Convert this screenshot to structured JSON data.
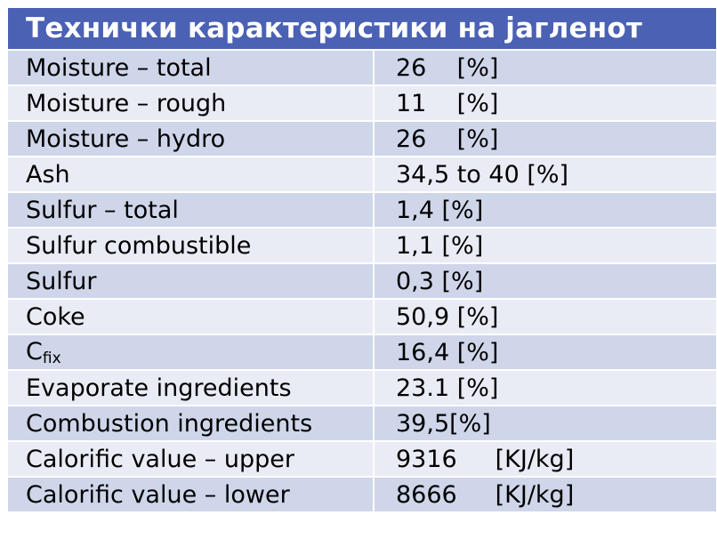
{
  "title": "Технички карактеристики на јагленот",
  "rows": [
    {
      "label": "Moisture – total",
      "value": "26    [%]"
    },
    {
      "label": "Moisture – rough",
      "value": "11    [%]"
    },
    {
      "label": "Moisture – hydro",
      "value": "26    [%]"
    },
    {
      "label": "Ash",
      "value": "34,5 to 40 [%]"
    },
    {
      "label": "Sulfur – total",
      "value": "1,4 [%]"
    },
    {
      "label": "Sulfur combustible",
      "value": "1,1 [%]"
    },
    {
      "label": "Sulfur",
      "value": "0,3 [%]"
    },
    {
      "label": "Coke",
      "value": "50,9 [%]"
    },
    {
      "label": "C",
      "label_sub": "fix",
      "value": "16,4 [%]"
    },
    {
      "label": "Evaporate ingredients",
      "value": "23.1 [%]"
    },
    {
      "label": "Combustion ingredients",
      "value": "39,5[%]"
    },
    {
      "label": "Calorific value – upper",
      "value": "9316     [KJ/kg]"
    },
    {
      "label": "Calorific value – lower",
      "value": "8666     [KJ/kg]"
    }
  ],
  "colors": {
    "header_bg": "#4a61b4",
    "row_odd": "#cfd6ea",
    "row_even": "#e9ecf5"
  }
}
